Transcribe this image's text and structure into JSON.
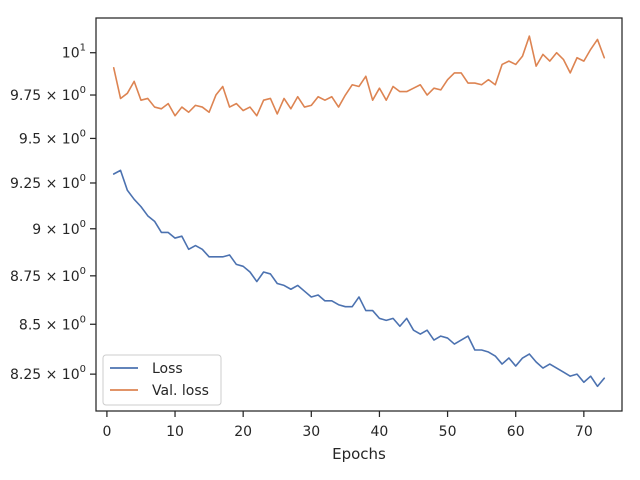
{
  "chart_data": {
    "type": "line",
    "title": "",
    "xlabel": "Epochs",
    "ylabel": "",
    "xlim": [
      -1.6,
      75.6
    ],
    "ylim": [
      8.07,
      10.21
    ],
    "y_scale": "log",
    "grid": false,
    "legend_position": "lower-left",
    "x_ticks": [
      0,
      10,
      20,
      30,
      40,
      50,
      60,
      70
    ],
    "x_tick_labels": [
      "0",
      "10",
      "20",
      "30",
      "40",
      "50",
      "60",
      "70"
    ],
    "y_ticks": [
      {
        "value": 8.25,
        "base": "8.25 × 10",
        "exp": "0"
      },
      {
        "value": 8.5,
        "base": "8.5 × 10",
        "exp": "0"
      },
      {
        "value": 8.75,
        "base": "8.75 × 10",
        "exp": "0"
      },
      {
        "value": 9.0,
        "base": "9 × 10",
        "exp": "0"
      },
      {
        "value": 9.25,
        "base": "9.25 × 10",
        "exp": "0"
      },
      {
        "value": 9.5,
        "base": "9.5 × 10",
        "exp": "0"
      },
      {
        "value": 9.75,
        "base": "9.75 × 10",
        "exp": "0"
      },
      {
        "value": 10.0,
        "base": "10",
        "exp": "1"
      }
    ],
    "x": [
      1,
      2,
      3,
      4,
      5,
      6,
      7,
      8,
      9,
      10,
      11,
      12,
      13,
      14,
      15,
      16,
      17,
      18,
      19,
      20,
      21,
      22,
      23,
      24,
      25,
      26,
      27,
      28,
      29,
      30,
      31,
      32,
      33,
      34,
      35,
      36,
      37,
      38,
      39,
      40,
      41,
      42,
      43,
      44,
      45,
      46,
      47,
      48,
      49,
      50,
      51,
      52,
      53,
      54,
      55,
      56,
      57,
      58,
      59,
      60,
      61,
      62,
      63,
      64,
      65,
      66,
      67,
      68,
      69,
      70,
      71,
      72,
      73
    ],
    "series": [
      {
        "name": "Loss",
        "color": "#4c72b0",
        "values": [
          9.3,
          9.32,
          9.21,
          9.16,
          9.12,
          9.07,
          9.04,
          8.98,
          8.98,
          8.95,
          8.96,
          8.89,
          8.91,
          8.89,
          8.85,
          8.85,
          8.85,
          8.86,
          8.81,
          8.8,
          8.77,
          8.72,
          8.77,
          8.76,
          8.71,
          8.7,
          8.68,
          8.7,
          8.67,
          8.64,
          8.65,
          8.62,
          8.62,
          8.6,
          8.59,
          8.59,
          8.64,
          8.57,
          8.57,
          8.53,
          8.52,
          8.53,
          8.49,
          8.53,
          8.47,
          8.45,
          8.47,
          8.42,
          8.44,
          8.43,
          8.4,
          8.42,
          8.44,
          8.37,
          8.37,
          8.36,
          8.34,
          8.3,
          8.33,
          8.29,
          8.33,
          8.35,
          8.31,
          8.28,
          8.3,
          8.28,
          8.26,
          8.24,
          8.25,
          8.21,
          8.24,
          8.19,
          8.23
        ]
      },
      {
        "name": "Val. loss",
        "color": "#dd8452",
        "values": [
          9.91,
          9.73,
          9.76,
          9.83,
          9.72,
          9.73,
          9.68,
          9.67,
          9.7,
          9.63,
          9.68,
          9.65,
          9.69,
          9.68,
          9.65,
          9.75,
          9.8,
          9.68,
          9.7,
          9.66,
          9.68,
          9.63,
          9.72,
          9.73,
          9.64,
          9.73,
          9.67,
          9.74,
          9.68,
          9.69,
          9.74,
          9.72,
          9.74,
          9.68,
          9.75,
          9.81,
          9.8,
          9.86,
          9.72,
          9.79,
          9.72,
          9.8,
          9.77,
          9.77,
          9.79,
          9.81,
          9.75,
          9.79,
          9.78,
          9.84,
          9.88,
          9.88,
          9.82,
          9.82,
          9.81,
          9.84,
          9.81,
          9.93,
          9.95,
          9.93,
          9.98,
          10.1,
          9.92,
          9.99,
          9.95,
          10.0,
          9.96,
          9.88,
          9.97,
          9.95,
          10.02,
          10.08,
          9.97
        ]
      }
    ]
  }
}
